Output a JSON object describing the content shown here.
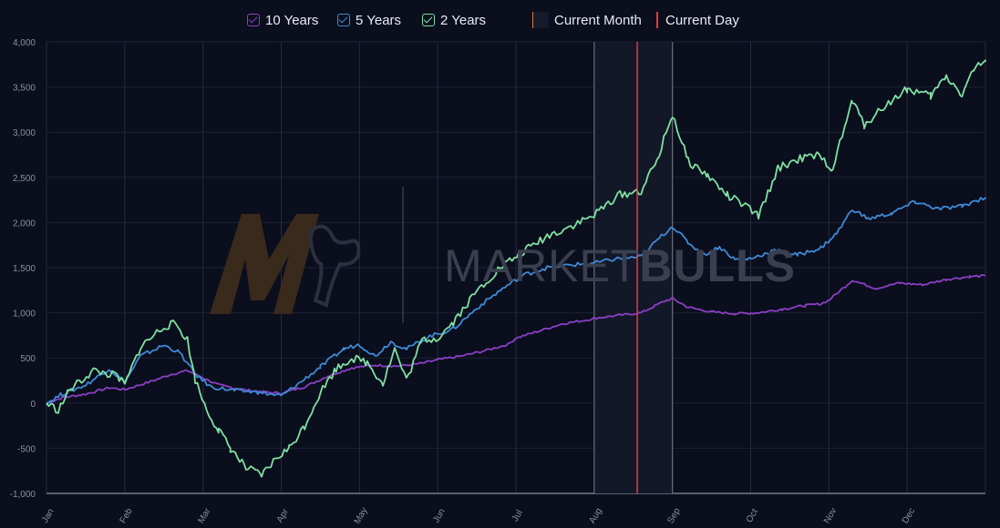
{
  "legend": {
    "items": [
      {
        "label": "10 Years",
        "color": "#8b3fc4",
        "kind": "check"
      },
      {
        "label": "5 Years",
        "color": "#3f8ad6",
        "kind": "check"
      },
      {
        "label": "2 Years",
        "color": "#7fe0a0",
        "kind": "check"
      },
      {
        "label": "Current Month",
        "color": "#e0793a",
        "kind": "month"
      },
      {
        "label": "Current Day",
        "color": "#e23b3b",
        "kind": "day"
      }
    ]
  },
  "watermark": {
    "text_light": "MARKET",
    "text_bold": "BULLS"
  },
  "chart_data": {
    "type": "line",
    "ylim": [
      -1000,
      4000
    ],
    "yticks": [
      -1000,
      -500,
      0,
      500,
      1000,
      1500,
      2000,
      2500,
      3000,
      3500,
      4000
    ],
    "ytick_labels": [
      "-1,000",
      "-500",
      "0",
      "500",
      "1,000",
      "1,500",
      "2,000",
      "2,500",
      "3,000",
      "3,500",
      "4,000"
    ],
    "xlim": [
      0,
      12
    ],
    "month_labels": [
      "Jan",
      "Feb",
      "Mar",
      "Apr",
      "May",
      "Jun",
      "Jul",
      "Aug",
      "Sep",
      "Oct",
      "Nov",
      "Dec"
    ],
    "current_month_span": [
      7,
      8
    ],
    "current_day": 7.55,
    "grid": true,
    "legend_position": "top",
    "series": [
      {
        "name": "10 Years",
        "color": "#8b3fc4",
        "points": [
          [
            0,
            0
          ],
          [
            0.2,
            60
          ],
          [
            0.5,
            100
          ],
          [
            0.8,
            170
          ],
          [
            1.0,
            150
          ],
          [
            1.3,
            230
          ],
          [
            1.6,
            320
          ],
          [
            1.8,
            360
          ],
          [
            2.0,
            280
          ],
          [
            2.2,
            200
          ],
          [
            2.5,
            150
          ],
          [
            2.8,
            120
          ],
          [
            3.0,
            110
          ],
          [
            3.3,
            180
          ],
          [
            3.6,
            300
          ],
          [
            3.9,
            390
          ],
          [
            4.2,
            420
          ],
          [
            4.5,
            410
          ],
          [
            4.8,
            440
          ],
          [
            5.0,
            480
          ],
          [
            5.3,
            520
          ],
          [
            5.6,
            580
          ],
          [
            5.9,
            650
          ],
          [
            6.0,
            720
          ],
          [
            6.3,
            800
          ],
          [
            6.6,
            880
          ],
          [
            6.9,
            920
          ],
          [
            7.0,
            940
          ],
          [
            7.3,
            970
          ],
          [
            7.6,
            1000
          ],
          [
            7.9,
            1130
          ],
          [
            8.0,
            1160
          ],
          [
            8.2,
            1060
          ],
          [
            8.5,
            1010
          ],
          [
            8.8,
            990
          ],
          [
            9.1,
            1000
          ],
          [
            9.4,
            1040
          ],
          [
            9.7,
            1080
          ],
          [
            9.9,
            1100
          ],
          [
            10.0,
            1140
          ],
          [
            10.3,
            1360
          ],
          [
            10.6,
            1270
          ],
          [
            10.9,
            1330
          ],
          [
            11.2,
            1310
          ],
          [
            11.5,
            1370
          ],
          [
            11.8,
            1400
          ],
          [
            12.0,
            1410
          ]
        ]
      },
      {
        "name": "5 Years",
        "color": "#3f8ad6",
        "points": [
          [
            0,
            0
          ],
          [
            0.2,
            100
          ],
          [
            0.5,
            200
          ],
          [
            0.8,
            380
          ],
          [
            1.0,
            230
          ],
          [
            1.2,
            520
          ],
          [
            1.5,
            640
          ],
          [
            1.7,
            560
          ],
          [
            1.9,
            320
          ],
          [
            2.1,
            180
          ],
          [
            2.4,
            140
          ],
          [
            2.7,
            120
          ],
          [
            3.0,
            80
          ],
          [
            3.2,
            200
          ],
          [
            3.5,
            400
          ],
          [
            3.8,
            600
          ],
          [
            4.0,
            650
          ],
          [
            4.2,
            520
          ],
          [
            4.4,
            680
          ],
          [
            4.6,
            600
          ],
          [
            4.9,
            740
          ],
          [
            5.2,
            820
          ],
          [
            5.5,
            1050
          ],
          [
            5.8,
            1250
          ],
          [
            6.1,
            1420
          ],
          [
            6.4,
            1500
          ],
          [
            6.7,
            1530
          ],
          [
            7.0,
            1550
          ],
          [
            7.3,
            1600
          ],
          [
            7.6,
            1620
          ],
          [
            7.8,
            1800
          ],
          [
            8.0,
            1960
          ],
          [
            8.2,
            1780
          ],
          [
            8.4,
            1640
          ],
          [
            8.6,
            1730
          ],
          [
            8.8,
            1590
          ],
          [
            9.0,
            1600
          ],
          [
            9.3,
            1690
          ],
          [
            9.6,
            1640
          ],
          [
            9.9,
            1720
          ],
          [
            10.1,
            1880
          ],
          [
            10.3,
            2150
          ],
          [
            10.5,
            2040
          ],
          [
            10.8,
            2100
          ],
          [
            11.1,
            2230
          ],
          [
            11.4,
            2150
          ],
          [
            11.7,
            2180
          ],
          [
            12.0,
            2280
          ]
        ]
      },
      {
        "name": "2 Years",
        "color": "#7fe0a0",
        "points": [
          [
            0,
            0
          ],
          [
            0.15,
            -80
          ],
          [
            0.3,
            150
          ],
          [
            0.6,
            360
          ],
          [
            0.9,
            300
          ],
          [
            1.0,
            200
          ],
          [
            1.2,
            620
          ],
          [
            1.5,
            850
          ],
          [
            1.65,
            880
          ],
          [
            1.8,
            700
          ],
          [
            1.9,
            260
          ],
          [
            2.05,
            -80
          ],
          [
            2.2,
            -300
          ],
          [
            2.35,
            -500
          ],
          [
            2.55,
            -720
          ],
          [
            2.75,
            -800
          ],
          [
            2.95,
            -600
          ],
          [
            3.1,
            -500
          ],
          [
            3.3,
            -250
          ],
          [
            3.5,
            120
          ],
          [
            3.7,
            380
          ],
          [
            3.9,
            500
          ],
          [
            4.1,
            450
          ],
          [
            4.3,
            220
          ],
          [
            4.45,
            600
          ],
          [
            4.6,
            250
          ],
          [
            4.8,
            700
          ],
          [
            5.0,
            720
          ],
          [
            5.2,
            900
          ],
          [
            5.5,
            1240
          ],
          [
            5.8,
            1500
          ],
          [
            6.1,
            1680
          ],
          [
            6.4,
            1850
          ],
          [
            6.7,
            1960
          ],
          [
            7.0,
            2080
          ],
          [
            7.3,
            2300
          ],
          [
            7.6,
            2350
          ],
          [
            7.8,
            2680
          ],
          [
            8.0,
            3200
          ],
          [
            8.2,
            2680
          ],
          [
            8.45,
            2520
          ],
          [
            8.7,
            2300
          ],
          [
            8.9,
            2200
          ],
          [
            9.1,
            2070
          ],
          [
            9.35,
            2600
          ],
          [
            9.6,
            2700
          ],
          [
            9.85,
            2740
          ],
          [
            10.05,
            2600
          ],
          [
            10.3,
            3350
          ],
          [
            10.45,
            3080
          ],
          [
            10.7,
            3280
          ],
          [
            11.0,
            3480
          ],
          [
            11.3,
            3400
          ],
          [
            11.5,
            3620
          ],
          [
            11.7,
            3420
          ],
          [
            11.85,
            3700
          ],
          [
            12.0,
            3780
          ]
        ]
      }
    ]
  }
}
